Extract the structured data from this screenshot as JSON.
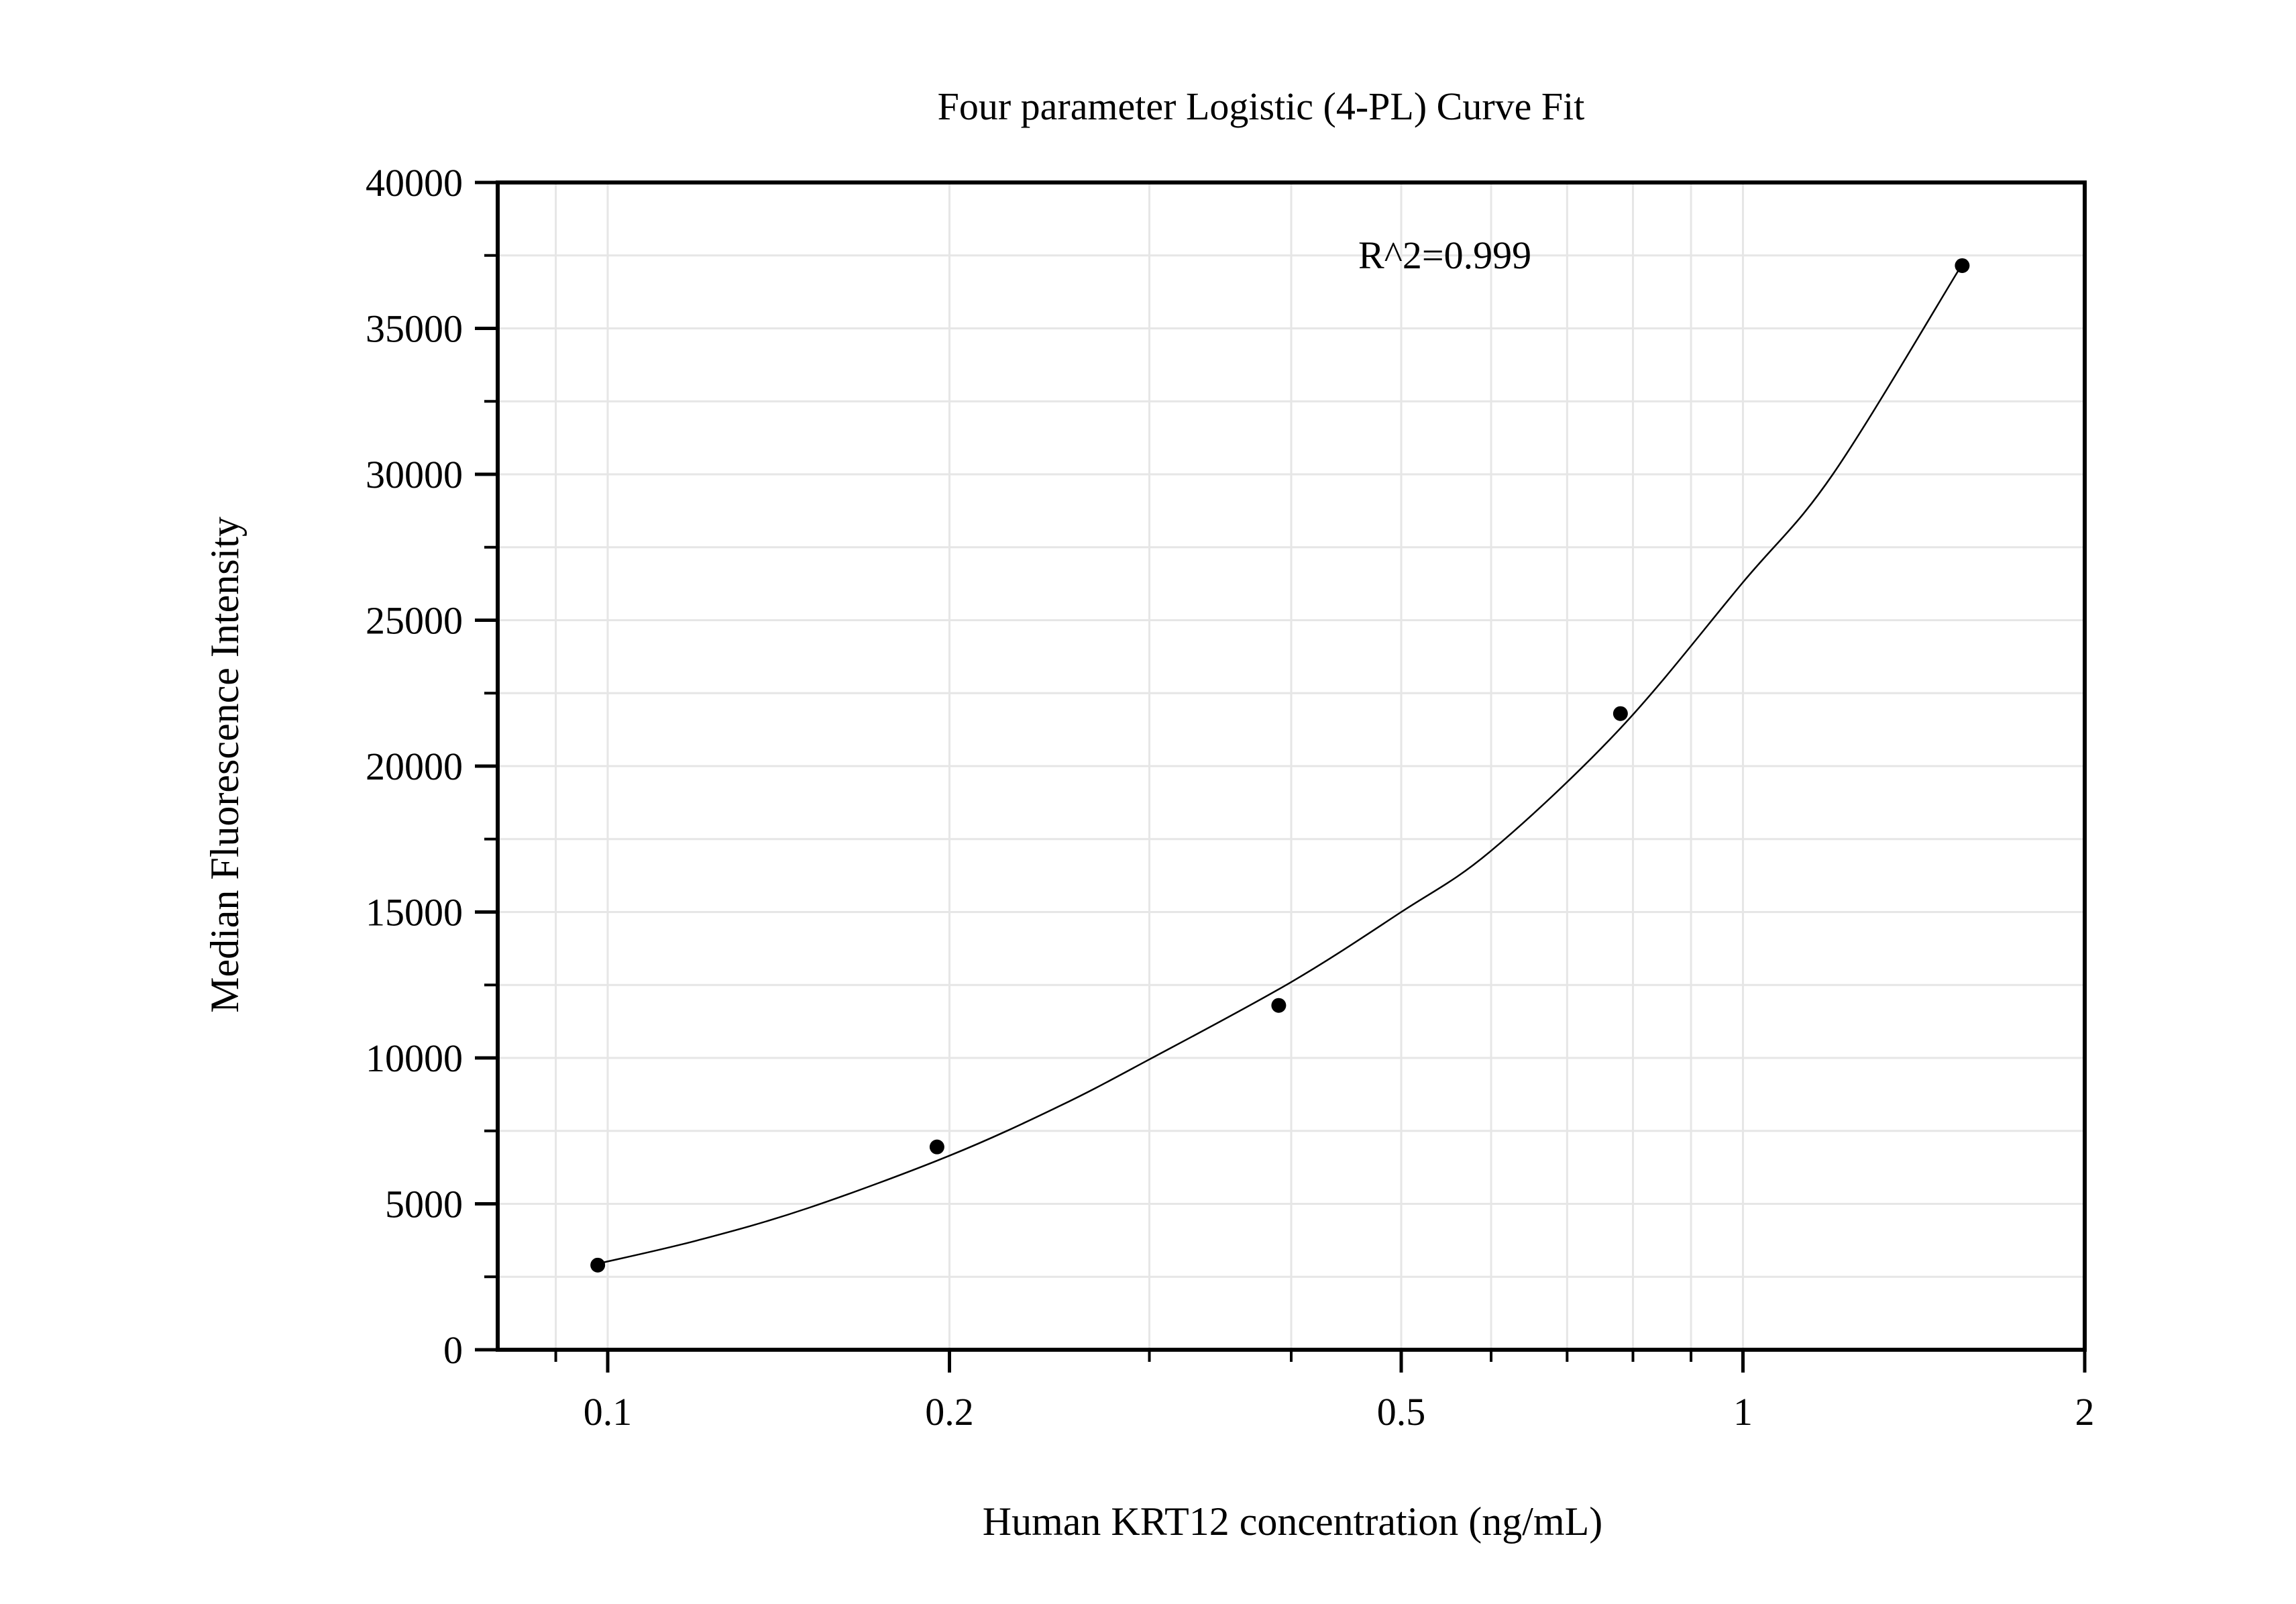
{
  "chart_data": {
    "type": "scatter",
    "title": "Four parameter Logistic (4-PL) Curve Fit",
    "xlabel": "Human KRT12 concentration (ng/mL)",
    "ylabel": "Median Fluorescence Intensity",
    "x_scale": "log",
    "xlim": [
      0.08,
      2
    ],
    "ylim": [
      0,
      40000
    ],
    "x_ticks": [
      0.1,
      0.2,
      0.5,
      1,
      2
    ],
    "x_tick_labels": [
      "0.1",
      "0.2",
      "0.5",
      "1",
      "2"
    ],
    "y_ticks": [
      0,
      5000,
      10000,
      15000,
      20000,
      25000,
      30000,
      35000,
      40000
    ],
    "y_tick_labels": [
      "0",
      "5000",
      "10000",
      "15000",
      "20000",
      "25000",
      "30000",
      "35000",
      "40000"
    ],
    "grid": true,
    "series": [
      {
        "x": [
          0.098,
          0.195,
          0.39,
          0.78,
          1.56
        ],
        "y": [
          2900,
          6950,
          11800,
          21800,
          37150
        ]
      }
    ],
    "fit_curve": {
      "x": [
        0.098,
        0.12,
        0.15,
        0.2,
        0.25,
        0.3,
        0.4,
        0.5,
        0.6,
        0.78,
        1.0,
        1.2,
        1.56
      ],
      "y": [
        2950,
        3750,
        4850,
        6650,
        8350,
        9950,
        12600,
        15000,
        17100,
        21300,
        26300,
        30000,
        37200
      ]
    },
    "annotation": "R^2=0.999",
    "colors": {
      "marker": "#000000",
      "curve": "#000000",
      "grid": "#e6e6e6",
      "axis": "#000000"
    }
  }
}
